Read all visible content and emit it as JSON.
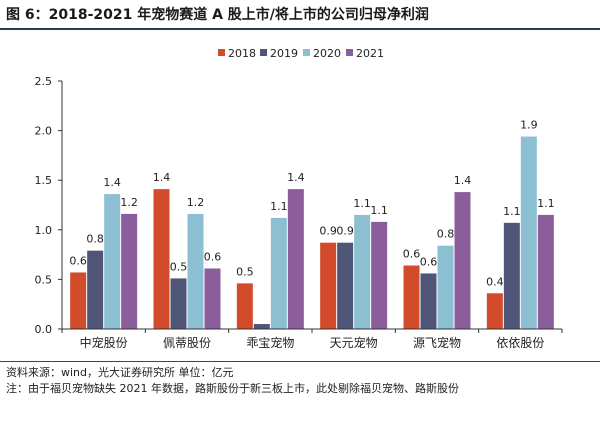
{
  "figure": {
    "title": "图 6：2018-2021 年宠物赛道 A 股上市/将上市的公司归母净利润",
    "source": "资料来源：wind，光大证券研究所    单位：亿元",
    "footnote": "注：由于福贝宠物缺失 2021 年数据，路斯股份于新三板上市，此处剔除福贝宠物、路斯股份"
  },
  "chart_data": {
    "type": "bar",
    "title": "",
    "xlabel": "",
    "ylabel": "",
    "categories": [
      "中宠股份",
      "佩蒂股份",
      "乖宝宠物",
      "天元宠物",
      "源飞宠物",
      "依依股份"
    ],
    "series": [
      {
        "name": "2018",
        "color": "#d24b2a",
        "values": [
          0.57,
          1.41,
          0.46,
          0.87,
          0.64,
          0.36
        ],
        "labels": [
          "0.6",
          "1.4",
          "0.5",
          "0.9",
          "0.6",
          "0.4"
        ]
      },
      {
        "name": "2019",
        "color": "#4f5577",
        "values": [
          0.79,
          0.51,
          0.05,
          0.87,
          0.56,
          1.07
        ],
        "labels": [
          "0.8",
          "0.5",
          "",
          "0.9",
          "0.6",
          "1.1"
        ]
      },
      {
        "name": "2020",
        "color": "#8dbfd3",
        "values": [
          1.36,
          1.16,
          1.12,
          1.15,
          0.84,
          1.94
        ],
        "labels": [
          "1.4",
          "1.2",
          "1.1",
          "1.1",
          "0.8",
          "1.9"
        ]
      },
      {
        "name": "2021",
        "color": "#8b5d9b",
        "values": [
          1.16,
          0.61,
          1.41,
          1.08,
          1.38,
          1.15
        ],
        "labels": [
          "1.2",
          "0.6",
          "1.4",
          "1.1",
          "1.4",
          "1.1"
        ]
      }
    ],
    "ylim": [
      0,
      2.5
    ],
    "yticks": [
      0,
      0.5,
      1.0,
      1.5,
      2.0,
      2.5
    ],
    "ytick_labels": [
      "0.0",
      "0.5",
      "1.0",
      "1.5",
      "2.0",
      "2.5"
    ],
    "grid": false,
    "legend_position": "top-center"
  }
}
